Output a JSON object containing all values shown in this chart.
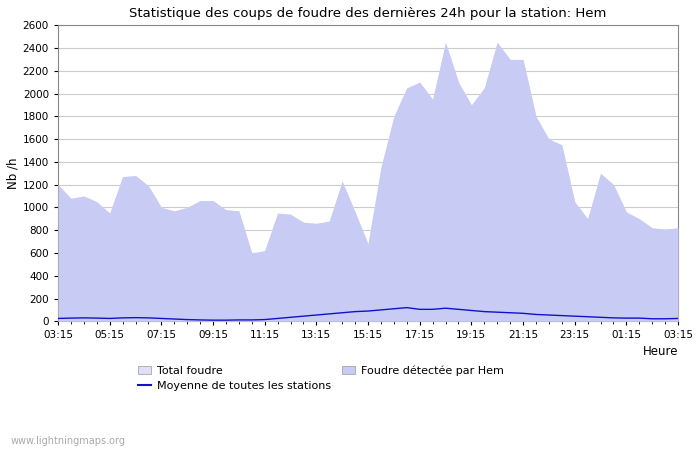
{
  "title": "Statistique des coups de foudre des dernières 24h pour la station: Hem",
  "xlabel": "Heure",
  "ylabel": "Nb /h",
  "ylim": [
    0,
    2600
  ],
  "yticks": [
    0,
    200,
    400,
    600,
    800,
    1000,
    1200,
    1400,
    1600,
    1800,
    2000,
    2200,
    2400,
    2600
  ],
  "x_labels": [
    "03:15",
    "05:15",
    "07:15",
    "09:15",
    "11:15",
    "13:15",
    "15:15",
    "17:15",
    "19:15",
    "21:15",
    "23:15",
    "01:15",
    "03:15"
  ],
  "background_color": "#ffffff",
  "plot_bg_color": "#ffffff",
  "grid_color": "#cccccc",
  "fill_total_color": "#dde0f8",
  "fill_hem_color": "#c8ccf5",
  "line_moyenne_color": "#1111cc",
  "watermark": "www.lightningmaps.org",
  "legend": {
    "total_foudre": "Total foudre",
    "moyenne": "Moyenne de toutes les stations",
    "hem": "Foudre détectée par Hem"
  },
  "x_values": [
    0,
    1,
    2,
    3,
    4,
    5,
    6,
    7,
    8,
    9,
    10,
    11,
    12,
    13,
    14,
    15,
    16,
    17,
    18,
    19,
    20,
    21,
    22,
    23,
    24,
    25,
    26,
    27,
    28,
    29,
    30,
    31,
    32,
    33,
    34,
    35,
    36,
    37,
    38,
    39,
    40,
    41,
    42,
    43,
    44,
    45,
    46,
    47,
    48
  ],
  "total_foudre": [
    1200,
    1080,
    1100,
    1050,
    950,
    1270,
    1280,
    1190,
    1000,
    970,
    1000,
    1060,
    1060,
    980,
    970,
    600,
    620,
    950,
    940,
    870,
    860,
    880,
    1230,
    960,
    680,
    1350,
    1800,
    2050,
    2100,
    1950,
    2450,
    2100,
    1900,
    2050,
    2450,
    2300,
    2300,
    1800,
    1600,
    1550,
    1050,
    900,
    1300,
    1200,
    960,
    900,
    820,
    810,
    820
  ],
  "foudre_hem": [
    1200,
    1080,
    1100,
    1050,
    950,
    1270,
    1280,
    1190,
    1000,
    970,
    1000,
    1060,
    1060,
    980,
    970,
    600,
    620,
    950,
    940,
    870,
    860,
    880,
    1230,
    960,
    680,
    1350,
    1800,
    2050,
    2100,
    1950,
    2450,
    2100,
    1900,
    2050,
    2450,
    2300,
    2300,
    1800,
    1600,
    1550,
    1050,
    900,
    1300,
    1200,
    960,
    900,
    820,
    810,
    820
  ],
  "moyenne": [
    25,
    28,
    30,
    28,
    25,
    30,
    32,
    30,
    25,
    20,
    15,
    12,
    10,
    10,
    12,
    12,
    15,
    25,
    35,
    45,
    55,
    65,
    75,
    85,
    90,
    100,
    110,
    120,
    105,
    105,
    115,
    105,
    95,
    85,
    80,
    75,
    70,
    60,
    55,
    50,
    45,
    40,
    35,
    30,
    28,
    28,
    22,
    22,
    25
  ]
}
